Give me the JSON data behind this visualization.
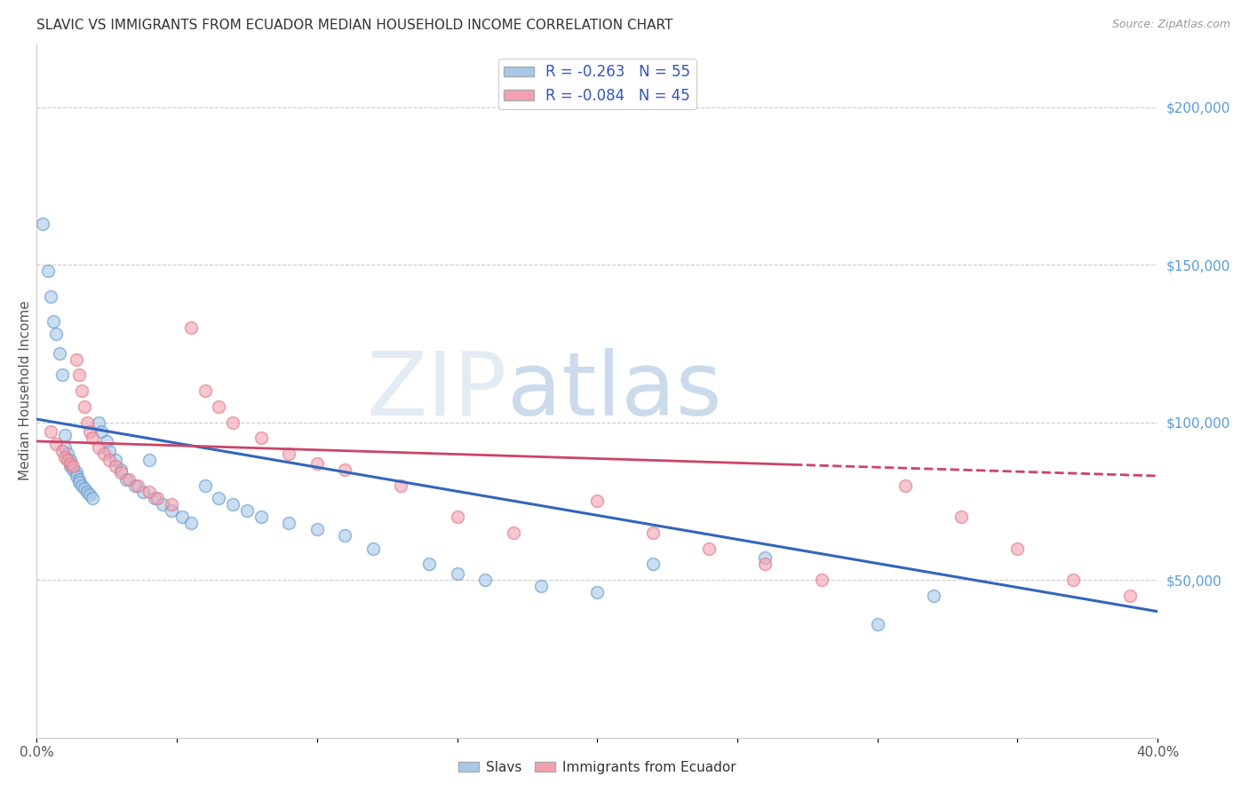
{
  "title": "SLAVIC VS IMMIGRANTS FROM ECUADOR MEDIAN HOUSEHOLD INCOME CORRELATION CHART",
  "source_text": "Source: ZipAtlas.com",
  "ylabel": "Median Household Income",
  "watermark_zip": "ZIP",
  "watermark_atlas": "atlas",
  "legend_entry1": "R = -0.263   N = 55",
  "legend_entry2": "R = -0.084   N = 45",
  "legend_label1": "Slavs",
  "legend_label2": "Immigrants from Ecuador",
  "xlim": [
    0.0,
    0.4
  ],
  "ylim": [
    0,
    220000
  ],
  "xticks": [
    0.0,
    0.05,
    0.1,
    0.15,
    0.2,
    0.25,
    0.3,
    0.35,
    0.4
  ],
  "xticklabels": [
    "0.0%",
    "",
    "",
    "",
    "",
    "",
    "",
    "",
    "40.0%"
  ],
  "yticks_right": [
    50000,
    100000,
    150000,
    200000
  ],
  "ytick_labels_right": [
    "$50,000",
    "$100,000",
    "$150,000",
    "$200,000"
  ],
  "blue_color": "#a8c8e8",
  "pink_color": "#f4a0b0",
  "blue_edge_color": "#6699cc",
  "pink_edge_color": "#dd7788",
  "blue_line_color": "#3366bb",
  "pink_line_color": "#cc4466",
  "slavs_x": [
    0.002,
    0.004,
    0.005,
    0.006,
    0.007,
    0.008,
    0.009,
    0.01,
    0.01,
    0.011,
    0.012,
    0.012,
    0.013,
    0.014,
    0.014,
    0.015,
    0.015,
    0.016,
    0.017,
    0.018,
    0.019,
    0.02,
    0.022,
    0.023,
    0.025,
    0.026,
    0.028,
    0.03,
    0.032,
    0.035,
    0.038,
    0.04,
    0.042,
    0.045,
    0.048,
    0.052,
    0.055,
    0.06,
    0.065,
    0.07,
    0.075,
    0.08,
    0.09,
    0.1,
    0.11,
    0.12,
    0.14,
    0.15,
    0.16,
    0.18,
    0.2,
    0.22,
    0.26,
    0.3,
    0.32
  ],
  "slavs_y": [
    163000,
    148000,
    140000,
    132000,
    128000,
    122000,
    115000,
    96000,
    92000,
    90000,
    88000,
    86000,
    85000,
    84000,
    83000,
    82000,
    81000,
    80000,
    79000,
    78000,
    77000,
    76000,
    100000,
    97000,
    94000,
    91000,
    88000,
    85000,
    82000,
    80000,
    78000,
    88000,
    76000,
    74000,
    72000,
    70000,
    68000,
    80000,
    76000,
    74000,
    72000,
    70000,
    68000,
    66000,
    64000,
    60000,
    55000,
    52000,
    50000,
    48000,
    46000,
    55000,
    57000,
    36000,
    45000
  ],
  "ecuador_x": [
    0.005,
    0.007,
    0.009,
    0.01,
    0.011,
    0.012,
    0.013,
    0.014,
    0.015,
    0.016,
    0.017,
    0.018,
    0.019,
    0.02,
    0.022,
    0.024,
    0.026,
    0.028,
    0.03,
    0.033,
    0.036,
    0.04,
    0.043,
    0.048,
    0.055,
    0.06,
    0.065,
    0.07,
    0.08,
    0.09,
    0.1,
    0.11,
    0.13,
    0.15,
    0.17,
    0.2,
    0.22,
    0.24,
    0.26,
    0.28,
    0.31,
    0.33,
    0.35,
    0.37,
    0.39
  ],
  "ecuador_y": [
    97000,
    93000,
    91000,
    89000,
    88000,
    87000,
    86000,
    120000,
    115000,
    110000,
    105000,
    100000,
    97000,
    95000,
    92000,
    90000,
    88000,
    86000,
    84000,
    82000,
    80000,
    78000,
    76000,
    74000,
    130000,
    110000,
    105000,
    100000,
    95000,
    90000,
    87000,
    85000,
    80000,
    70000,
    65000,
    75000,
    65000,
    60000,
    55000,
    50000,
    80000,
    70000,
    60000,
    50000,
    45000
  ],
  "blue_trendline_x": [
    0.0,
    0.4
  ],
  "blue_trendline_y": [
    101000,
    40000
  ],
  "pink_trendline_x": [
    0.0,
    0.4
  ],
  "pink_trendline_y": [
    94000,
    83000
  ],
  "background_color": "#ffffff",
  "grid_color": "#cccccc",
  "title_color": "#333333",
  "axis_label_color": "#555555",
  "right_tick_color": "#5b9bd5",
  "marker_size": 100
}
